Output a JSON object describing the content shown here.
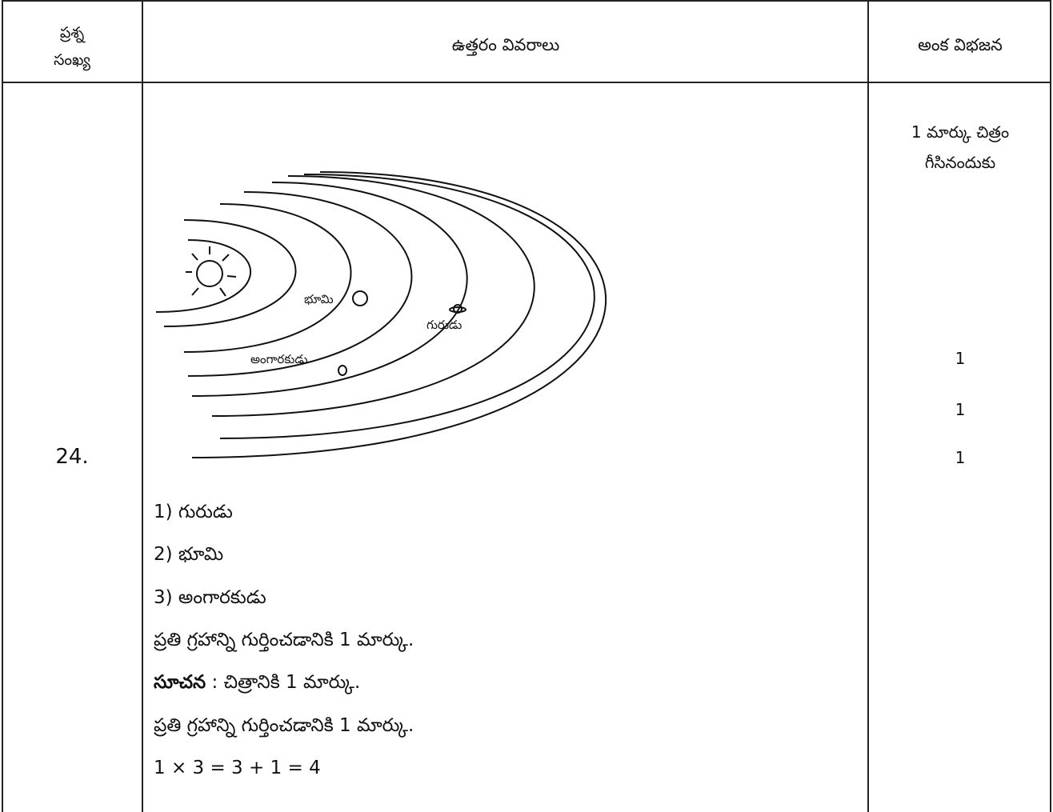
{
  "table": {
    "header": {
      "question_no": [
        "ప్రశ్న",
        "సంఖ్య"
      ],
      "answer_details": "ఉత్తరం వివరాలు",
      "marks_split": "అంక విభజన"
    },
    "row": {
      "question_no": "24.",
      "figure_labels": {
        "earth": "భూమి",
        "jupiter": "గురుడు",
        "mars": "అంగారకుడు"
      },
      "answer_lines": [
        "1) గురుడు",
        "2) భూమి",
        "3) అంగారకుడు",
        "ప్రతి గ్రహాన్ని గుర్తించడానికి 1 మార్కు."
      ],
      "hint": {
        "label": "సూచన",
        "text": ": చిత్రానికి 1 మార్కు."
      },
      "after_hint": [
        "ప్రతి గ్రహాన్ని గుర్తించడానికి 1 మార్కు.",
        "1 × 3 = 3 + 1 = 4"
      ],
      "marks": {
        "figure_note": [
          "1 మార్కు చిత్రం",
          "గీసినందుకు"
        ],
        "items": [
          "1",
          "1",
          "1"
        ]
      }
    }
  }
}
